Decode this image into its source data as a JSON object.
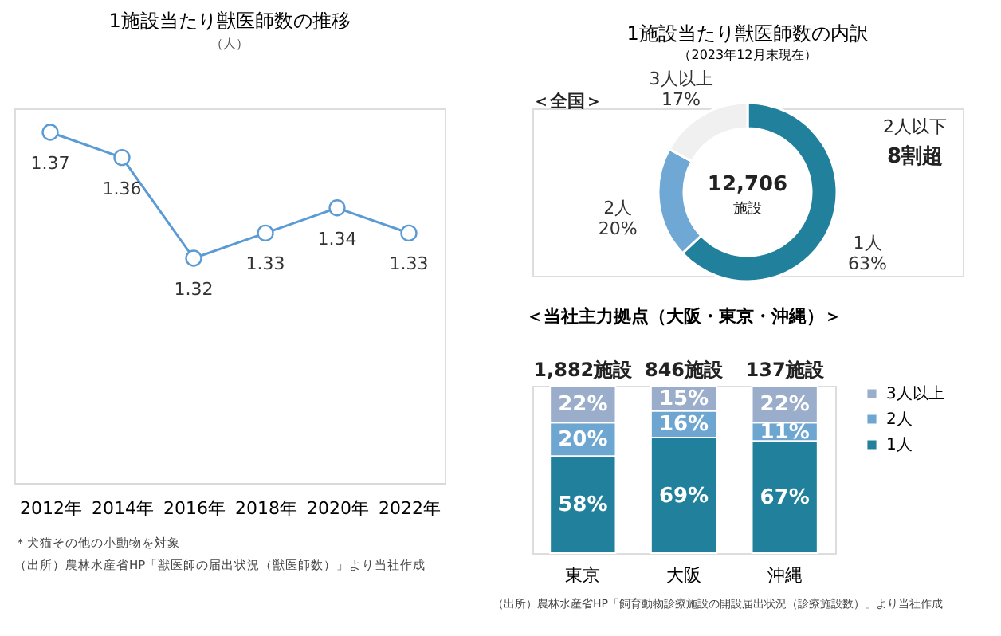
{
  "chart_data": [
    {
      "type": "line",
      "title": "1施設当たり獣医師数の推移",
      "ylabel": "（人）",
      "categories": [
        "2012年",
        "2014年",
        "2016年",
        "2018年",
        "2020年",
        "2022年"
      ],
      "series": [
        {
          "color": "#5b9bd5",
          "values": [
            1.37,
            1.36,
            1.32,
            1.33,
            1.34,
            1.33
          ]
        }
      ],
      "marker": "circle",
      "data_labels": true,
      "tick_labels": "x",
      "grid": false,
      "annotations": [
        "＊犬猫その他の小動物を対象",
        "（出所）農林水産省HP「獣医師の届出状況（獣医師数）」より当社作成"
      ]
    },
    {
      "type": "donut",
      "title": "1施設当たり獣医師数の内訳",
      "subtitle": "（2023年12月末現在）",
      "categories": [
        "1人",
        "2人",
        "3人以上"
      ],
      "values": [
        63,
        20,
        17
      ],
      "colors": [
        "#21809c",
        "#6fa8d4",
        "#f0f0f0"
      ],
      "value_labels": [
        "63%",
        "20%",
        "17%"
      ],
      "annotations": [
        "＜全国＞",
        "12,706",
        "施設",
        "2人以下",
        "8割超"
      ]
    },
    {
      "type": "bar",
      "title": "＜当社主力拠点（大阪・東京・沖縄）＞",
      "categories": [
        "東京",
        "大阪",
        "沖縄"
      ],
      "stacked": true,
      "series": [
        {
          "name": "1人",
          "color": "#21809c",
          "values": [
            58,
            69,
            67
          ],
          "value_labels": [
            "58%",
            "69%",
            "67%"
          ]
        },
        {
          "name": "2人",
          "color": "#6ea6d2",
          "values": [
            20,
            16,
            11
          ],
          "value_labels": [
            "20%",
            "16%",
            "11%"
          ]
        },
        {
          "name": "3人以上",
          "color": "#9aaecb",
          "values": [
            22,
            15,
            22
          ],
          "value_labels": [
            "22%",
            "15%",
            "22%"
          ]
        }
      ],
      "legend": "right",
      "tick_labels": "x",
      "annotations": [
        "1,882施設",
        "846施設",
        "137施設",
        "（出所）農林水産省HP「飼育動物診療施設の開設届出状況（診療施設数）」より当社作成"
      ]
    }
  ]
}
